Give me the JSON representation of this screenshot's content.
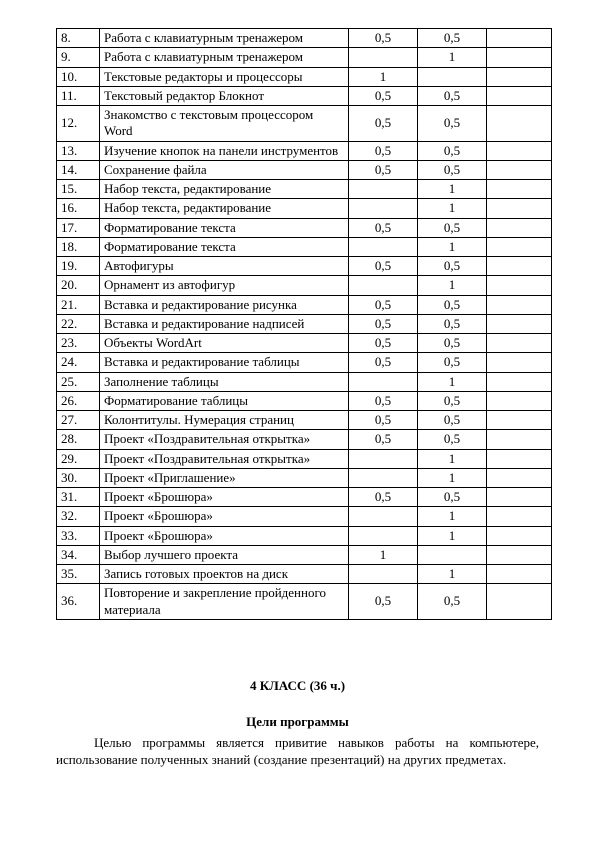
{
  "table": {
    "columns": {
      "num_width": 34,
      "topic_width": 240,
      "value_width": 60,
      "last_width": 56
    },
    "rows": [
      {
        "n": "8.",
        "topic": "Работа с клавиатурным тренажером",
        "a": "0,5",
        "b": "0,5"
      },
      {
        "n": "9.",
        "topic": "Работа с клавиатурным тренажером",
        "a": "",
        "b": "1"
      },
      {
        "n": "10.",
        "topic": "Текстовые редакторы и процессоры",
        "a": "1",
        "b": ""
      },
      {
        "n": "11.",
        "topic": "Текстовый редактор Блокнот",
        "a": "0,5",
        "b": "0,5"
      },
      {
        "n": "12.",
        "topic": "Знакомство с текстовым процессором Word",
        "a": "0,5",
        "b": "0,5"
      },
      {
        "n": "13.",
        "topic": "Изучение кнопок на панели инструментов",
        "a": "0,5",
        "b": "0,5"
      },
      {
        "n": "14.",
        "topic": "Сохранение файла",
        "a": "0,5",
        "b": "0,5"
      },
      {
        "n": "15.",
        "topic": "Набор текста, редактирование",
        "a": "",
        "b": "1"
      },
      {
        "n": "16.",
        "topic": "Набор текста, редактирование",
        "a": "",
        "b": "1"
      },
      {
        "n": "17.",
        "topic": "Форматирование текста",
        "a": "0,5",
        "b": "0,5"
      },
      {
        "n": "18.",
        "topic": "Форматирование текста",
        "a": "",
        "b": "1"
      },
      {
        "n": "19.",
        "topic": "Автофигуры",
        "a": "0,5",
        "b": "0,5"
      },
      {
        "n": "20.",
        "topic": "Орнамент из автофигур",
        "a": "",
        "b": "1"
      },
      {
        "n": "21.",
        "topic": "Вставка и редактирование рисунка",
        "a": "0,5",
        "b": "0,5"
      },
      {
        "n": "22.",
        "topic": "Вставка и редактирование надписей",
        "a": "0,5",
        "b": "0,5"
      },
      {
        "n": "23.",
        "topic": "Объекты WordArt",
        "a": "0,5",
        "b": "0,5"
      },
      {
        "n": "24.",
        "topic": "Вставка и редактирование таблицы",
        "a": "0,5",
        "b": "0,5"
      },
      {
        "n": "25.",
        "topic": "Заполнение таблицы",
        "a": "",
        "b": "1"
      },
      {
        "n": "26.",
        "topic": "Форматирование таблицы",
        "a": "0,5",
        "b": "0,5"
      },
      {
        "n": "27.",
        "topic": "Колонтитулы. Нумерация страниц",
        "a": "0,5",
        "b": "0,5"
      },
      {
        "n": "28.",
        "topic": "Проект «Поздравительная открытка»",
        "a": "0,5",
        "b": "0,5"
      },
      {
        "n": "29.",
        "topic": "Проект «Поздравительная открытка»",
        "a": "",
        "b": "1"
      },
      {
        "n": "30.",
        "topic": "Проект «Приглашение»",
        "a": "",
        "b": "1"
      },
      {
        "n": "31.",
        "topic": "Проект «Брошюра»",
        "a": "0,5",
        "b": "0,5"
      },
      {
        "n": "32.",
        "topic": "Проект «Брошюра»",
        "a": "",
        "b": "1"
      },
      {
        "n": "33.",
        "topic": "Проект «Брошюра»",
        "a": "",
        "b": "1"
      },
      {
        "n": "34.",
        "topic": "Выбор лучшего проекта",
        "a": "1",
        "b": ""
      },
      {
        "n": "35.",
        "topic": "Запись готовых проектов на диск",
        "a": "",
        "b": "1"
      },
      {
        "n": "36.",
        "topic": "Повторение и закрепление пройденного материала",
        "a": "0,5",
        "b": "0,5"
      }
    ]
  },
  "section": {
    "title": "4 КЛАСС (36 ч.)",
    "subheading": "Цели программы",
    "paragraph": "Целью программы является привитие навыков работы на компьютере, использование полученных знаний (создание презентаций) на других предметах."
  }
}
